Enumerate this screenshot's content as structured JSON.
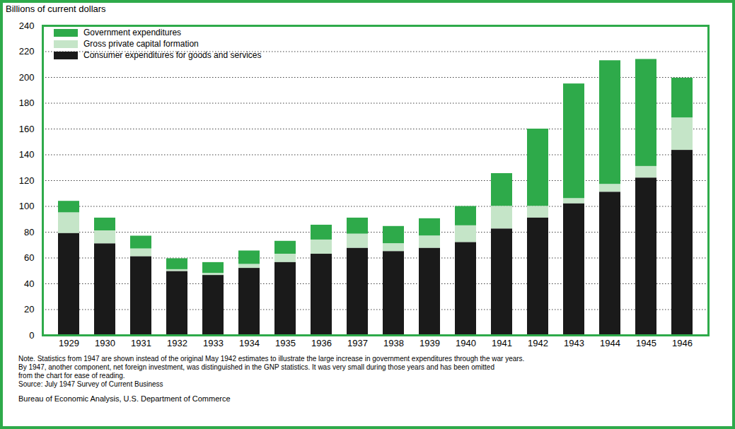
{
  "chart_data": {
    "type": "bar",
    "stacked": true,
    "grid": true,
    "legend": "top-left",
    "y_label": "Billions of current dollars",
    "categories": [
      "1929",
      "1930",
      "1931",
      "1932",
      "1933",
      "1934",
      "1935",
      "1936",
      "1937",
      "1938",
      "1939",
      "1940",
      "1941",
      "1942",
      "1943",
      "1944",
      "1945",
      "1946"
    ],
    "series": [
      {
        "name": "Government expenditures",
        "color": "#2eaa4a",
        "values": [
          9,
          10,
          10,
          8.5,
          8.5,
          10.5,
          10,
          11.5,
          12.5,
          13.5,
          13.5,
          15,
          25.5,
          60,
          89,
          96,
          83,
          31
        ]
      },
      {
        "name": "Gross private capital formation",
        "color": "#c5e5c8",
        "values": [
          16,
          10,
          6,
          1.5,
          1.5,
          3,
          6.5,
          11,
          11,
          6,
          9.5,
          13,
          17.5,
          9,
          4,
          6,
          9,
          25
        ]
      },
      {
        "name": "Consumer expenditures for goods and services",
        "color": "#1a1a1a",
        "values": [
          79,
          71,
          61,
          49.5,
          46.5,
          52,
          56.5,
          63,
          67.5,
          65,
          67.5,
          72,
          82.5,
          91,
          102,
          111,
          122,
          143.5
        ]
      }
    ],
    "ylim": [
      0,
      240
    ],
    "yticks": [
      0,
      20,
      40,
      60,
      80,
      100,
      120,
      140,
      160,
      180,
      200,
      220,
      240
    ],
    "notes": [
      "Note. Statistics from 1947 are shown instead of the original May 1942 estimates to illustrate the large increase in government expenditures through the war years.",
      "By 1947, another component, net foreign investment, was distinguished in the GNP statistics.  It was very small during those years and has been omitted",
      "from the chart for ease of reading.",
      "Source:  July 1947  Survey of Current Business"
    ],
    "credit": "Bureau of Economic Analysis, U.S. Department of Commerce"
  }
}
